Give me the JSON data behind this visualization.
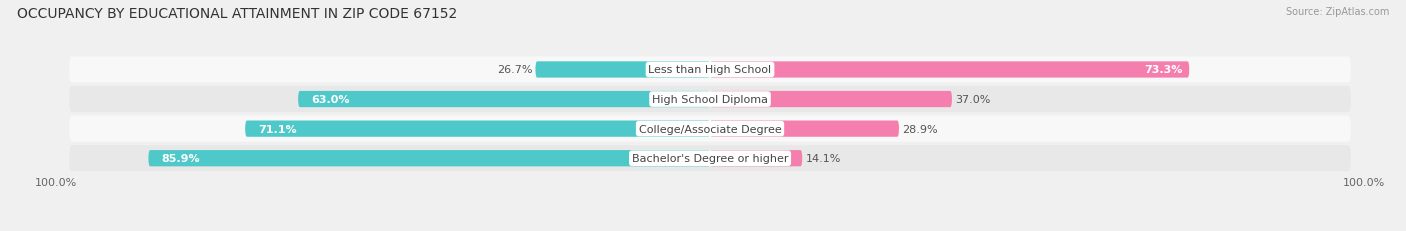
{
  "title": "OCCUPANCY BY EDUCATIONAL ATTAINMENT IN ZIP CODE 67152",
  "source": "Source: ZipAtlas.com",
  "categories": [
    "Less than High School",
    "High School Diploma",
    "College/Associate Degree",
    "Bachelor's Degree or higher"
  ],
  "owner_values": [
    26.7,
    63.0,
    71.1,
    85.9
  ],
  "renter_values": [
    73.3,
    37.0,
    28.9,
    14.1
  ],
  "owner_color": "#4EC8C8",
  "renter_color": "#F47FAE",
  "bg_color": "#f0f0f0",
  "row_bg_light": "#f8f8f8",
  "row_bg_dark": "#e8e8e8",
  "title_fontsize": 10,
  "label_fontsize": 8,
  "value_fontsize": 8,
  "tick_fontsize": 8,
  "bar_height": 0.55,
  "xlim": 100,
  "bottom_tick_label": "100.0%"
}
